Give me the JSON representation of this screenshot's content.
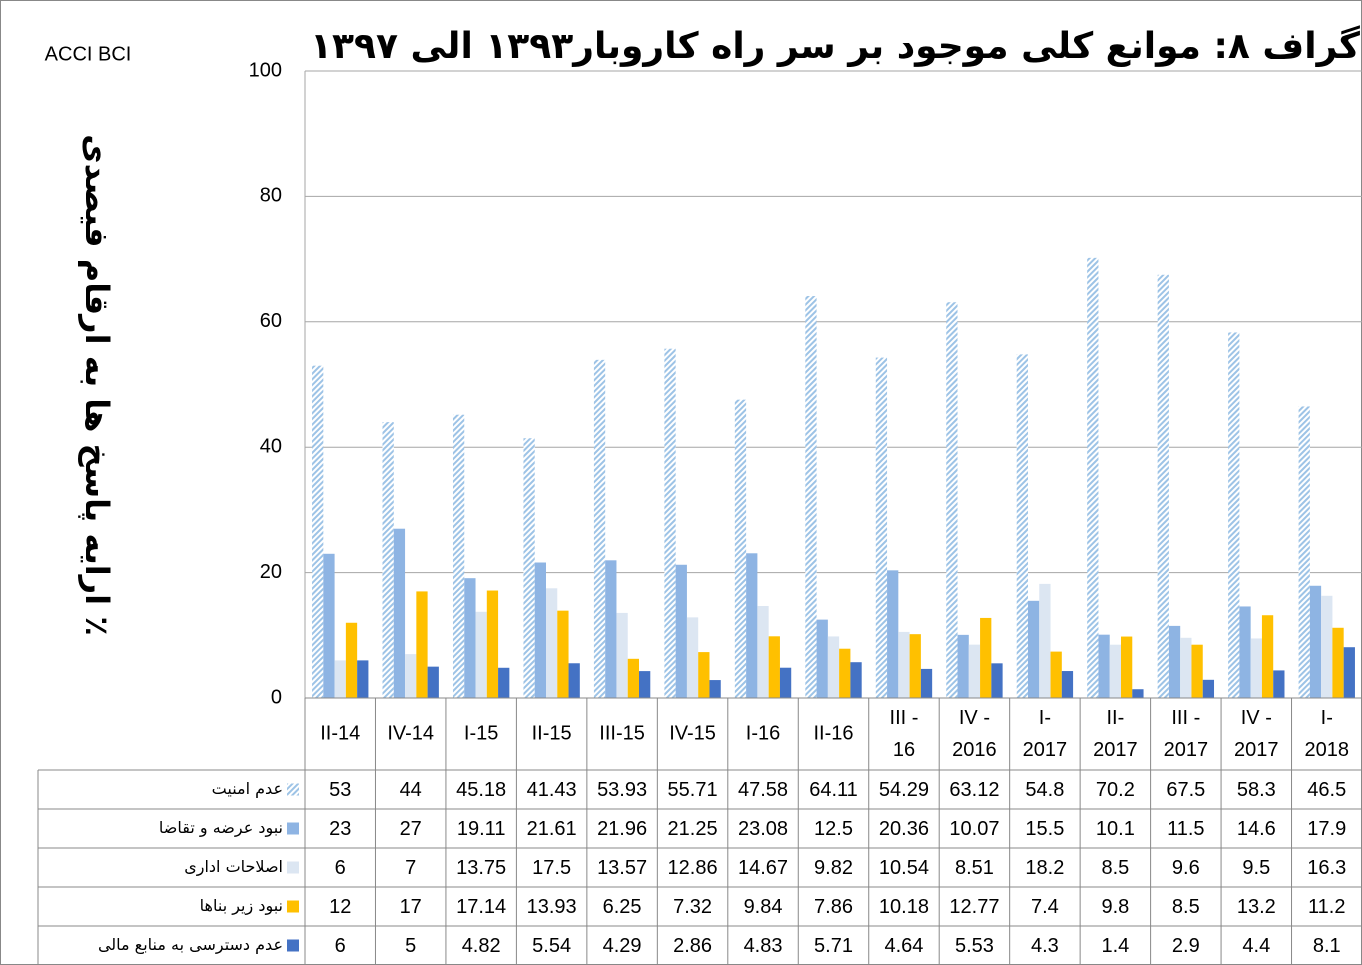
{
  "chart_data": {
    "type": "bar",
    "title": "گراف ۸: موانع کلی موجود بر سر راه کاروبار۱۳۹۳ الی ۱۳۹۷",
    "source": "ACCI BCI",
    "y_label": "ارایه پاسخ ها به ارقام فیصدی ٪",
    "categories": [
      "II-14",
      "IV-14",
      "I-15",
      "II-15",
      "III-15",
      "IV-15",
      "I-16",
      "II-16",
      "III - 16",
      "IV - 2016",
      "I- 2017",
      "II- 2017",
      "III - 2017",
      "IV - 2017",
      "I- 2018"
    ],
    "series": [
      {
        "name": "عدم امنیت",
        "color": "#9dc3e6",
        "pattern": "hatch",
        "values": [
          53,
          44,
          45.18,
          41.43,
          53.93,
          55.71,
          47.58,
          64.11,
          54.29,
          63.12,
          54.8,
          70.2,
          67.5,
          58.3,
          46.5
        ]
      },
      {
        "name": "نبود عرضه و تقاضا",
        "color": "#8eb4e3",
        "values": [
          23,
          27,
          19.11,
          21.61,
          21.96,
          21.25,
          23.08,
          12.5,
          20.36,
          10.07,
          15.5,
          10.1,
          11.5,
          14.6,
          17.9
        ]
      },
      {
        "name": "اصلاحات اداری",
        "color": "#dce6f2",
        "values": [
          6,
          7,
          13.75,
          17.5,
          13.57,
          12.86,
          14.67,
          9.82,
          10.54,
          8.51,
          18.2,
          8.5,
          9.6,
          9.5,
          16.3
        ]
      },
      {
        "name": "نبود زیر بناها",
        "color": "#ffc000",
        "values": [
          12,
          17,
          17.14,
          13.93,
          6.25,
          7.32,
          9.84,
          7.86,
          10.18,
          12.77,
          7.4,
          9.8,
          8.5,
          13.2,
          11.2
        ]
      },
      {
        "name": "عدم دسترسی به منابع مالی",
        "color": "#4472c4",
        "values": [
          6,
          5,
          4.82,
          5.54,
          4.29,
          2.86,
          4.83,
          5.71,
          4.64,
          5.53,
          4.3,
          1.4,
          2.9,
          4.4,
          8.1
        ]
      }
    ],
    "ylim": [
      0,
      100
    ],
    "yticks": [
      0,
      20,
      40,
      60,
      80,
      100
    ],
    "grid": true,
    "data_table": true
  }
}
